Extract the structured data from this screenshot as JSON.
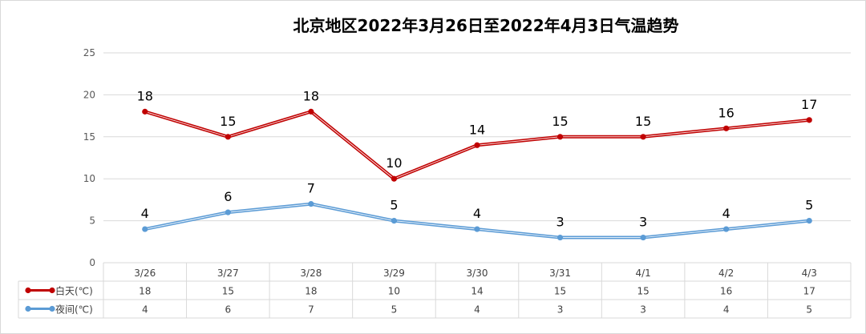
{
  "chart_data": {
    "type": "line",
    "title": "北京地区2022年3月26日至2022年4月3日气温趋势",
    "categories": [
      "3/26",
      "3/27",
      "3/28",
      "3/29",
      "3/30",
      "3/31",
      "4/1",
      "4/2",
      "4/3"
    ],
    "series": [
      {
        "name": "白天(℃)",
        "color": "#c00000",
        "values": [
          18,
          15,
          18,
          10,
          14,
          15,
          15,
          16,
          17
        ]
      },
      {
        "name": "夜间(℃)",
        "color": "#5b9bd5",
        "values": [
          4,
          6,
          7,
          5,
          4,
          3,
          3,
          4,
          5
        ]
      }
    ],
    "ylim": [
      0,
      25
    ],
    "yticks": [
      0,
      5,
      10,
      15,
      20,
      25
    ],
    "grid": true,
    "legend": "data-table-left",
    "data_labels": true
  }
}
